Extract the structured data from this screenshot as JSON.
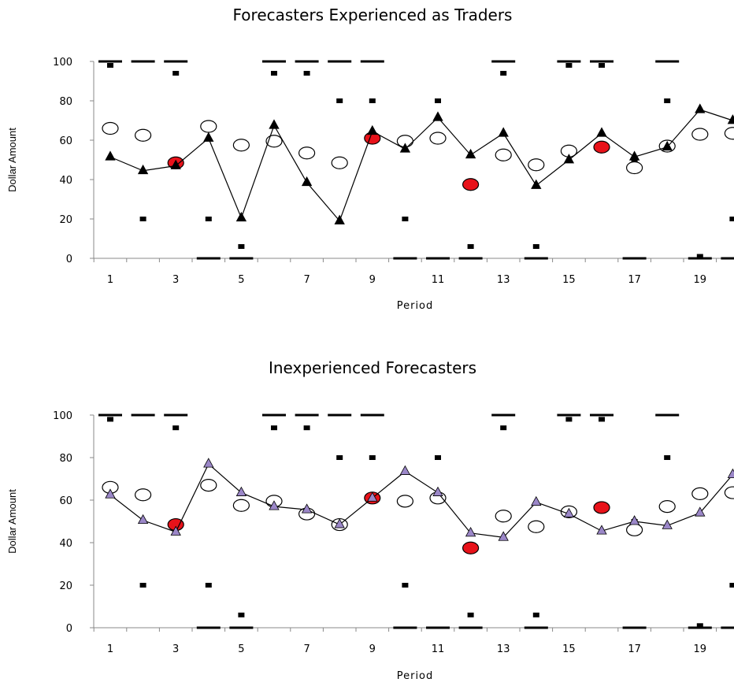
{
  "chart_data": [
    {
      "type": "scatter",
      "title": "Forecasters Experienced as Traders",
      "xlabel": "Period",
      "ylabel": "Dollar Amount",
      "ylim": [
        0,
        100
      ],
      "yticks": [
        "0",
        "20",
        "40",
        "60",
        "80",
        "100"
      ],
      "xticks": [
        "1",
        "3",
        "5",
        "7",
        "9",
        "11",
        "13",
        "15",
        "17",
        "19"
      ],
      "x": [
        1,
        2,
        3,
        4,
        5,
        6,
        7,
        8,
        9,
        10,
        11,
        12,
        13,
        14,
        15,
        16,
        17,
        18,
        19,
        20
      ],
      "series": [
        {
          "kind": "triangle-line",
          "values": [
            51.5,
            44.5,
            47,
            61,
            20.5,
            67.5,
            38.5,
            19,
            64.5,
            55.5,
            71.5,
            52.5,
            63.5,
            37,
            50,
            63.5,
            51.5,
            56.5,
            75.5,
            70
          ]
        },
        {
          "kind": "circle",
          "values": [
            66,
            62.5,
            48.5,
            67,
            57.5,
            59.5,
            53.5,
            48.5,
            61,
            59.5,
            61,
            37.5,
            52.5,
            47.5,
            54.5,
            56.5,
            46,
            57,
            63,
            63.5
          ]
        },
        {
          "kind": "red-points",
          "periods": [
            3,
            9,
            12,
            16
          ]
        },
        {
          "kind": "upper-bar",
          "values": [
            100,
            100,
            100,
            null,
            null,
            100,
            100,
            100,
            100,
            null,
            null,
            null,
            100,
            null,
            100,
            100,
            null,
            100,
            null,
            null
          ]
        },
        {
          "kind": "lower-bar",
          "values": [
            null,
            null,
            null,
            0,
            0,
            null,
            null,
            null,
            null,
            0,
            0,
            0,
            null,
            0,
            null,
            null,
            0,
            null,
            0,
            0
          ]
        },
        {
          "kind": "small-square",
          "values": [
            98,
            20,
            94,
            20,
            6,
            94,
            94,
            80,
            80,
            20,
            80,
            6,
            94,
            6,
            98,
            98,
            50,
            80,
            1,
            20
          ]
        }
      ]
    },
    {
      "type": "scatter",
      "title": "Inexperienced Forecasters",
      "xlabel": "Period",
      "ylabel": "Dollar Amount",
      "ylim": [
        0,
        100
      ],
      "yticks": [
        "0",
        "20",
        "40",
        "60",
        "80",
        "100"
      ],
      "xticks": [
        "1",
        "3",
        "5",
        "7",
        "9",
        "11",
        "13",
        "15",
        "17",
        "19"
      ],
      "x": [
        1,
        2,
        3,
        4,
        5,
        6,
        7,
        8,
        9,
        10,
        11,
        12,
        13,
        14,
        15,
        16,
        17,
        18,
        19,
        20
      ],
      "series": [
        {
          "kind": "triangle-line",
          "values": [
            62.5,
            50.5,
            45,
            77,
            63.5,
            57,
            55.5,
            48.5,
            61,
            73.5,
            63.5,
            44.5,
            42.5,
            59,
            53.5,
            45.5,
            50,
            48,
            54,
            72
          ]
        },
        {
          "kind": "circle",
          "values": [
            66,
            62.5,
            48.5,
            67,
            57.5,
            59.5,
            53.5,
            48.5,
            61,
            59.5,
            61,
            37.5,
            52.5,
            47.5,
            54.5,
            56.5,
            46,
            57,
            63,
            63.5
          ]
        },
        {
          "kind": "red-points",
          "periods": [
            3,
            9,
            12,
            16
          ]
        },
        {
          "kind": "upper-bar",
          "values": [
            100,
            100,
            100,
            null,
            null,
            100,
            100,
            100,
            100,
            null,
            null,
            null,
            100,
            null,
            100,
            100,
            null,
            100,
            null,
            null
          ]
        },
        {
          "kind": "lower-bar",
          "values": [
            null,
            null,
            null,
            0,
            0,
            null,
            null,
            null,
            null,
            0,
            0,
            0,
            null,
            0,
            null,
            null,
            0,
            null,
            0,
            0
          ]
        },
        {
          "kind": "small-square",
          "values": [
            98,
            20,
            94,
            20,
            6,
            94,
            94,
            80,
            80,
            20,
            80,
            6,
            94,
            6,
            98,
            98,
            50,
            80,
            1,
            20
          ]
        }
      ]
    }
  ],
  "colors": {
    "red_fill": "#e8121a",
    "triangle_top": "#000000",
    "triangle_bottom": "#9b87c8",
    "line": "#000000"
  }
}
